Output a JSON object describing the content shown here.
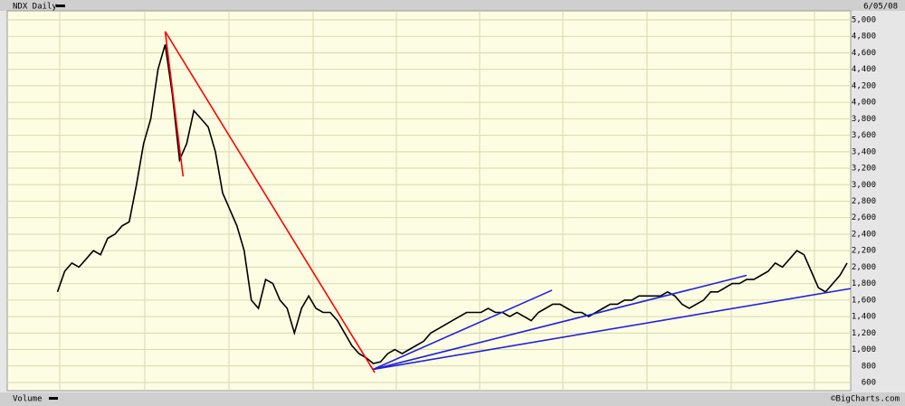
{
  "chart_data": {
    "type": "line",
    "title": "NDX Daily",
    "date_label": "6/05/08",
    "lower_panel_label": "Volume",
    "credit": "©BigCharts.com",
    "series": [
      {
        "name": "NDX",
        "color": "#000000",
        "values": [
          1700,
          1950,
          2050,
          2000,
          2100,
          2200,
          2150,
          2350,
          2400,
          2500,
          2550,
          3000,
          3500,
          3800,
          4400,
          4700,
          4100,
          3300,
          3500,
          3900,
          3800,
          3700,
          3400,
          2900,
          2700,
          2500,
          2200,
          1600,
          1500,
          1850,
          1800,
          1600,
          1500,
          1200,
          1500,
          1650,
          1500,
          1450,
          1450,
          1350,
          1200,
          1050,
          950,
          900,
          830,
          850,
          950,
          1000,
          950,
          1000,
          1050,
          1100,
          1200,
          1250,
          1300,
          1350,
          1400,
          1450,
          1450,
          1450,
          1500,
          1450,
          1450,
          1400,
          1450,
          1400,
          1350,
          1450,
          1500,
          1550,
          1550,
          1500,
          1450,
          1450,
          1400,
          1450,
          1500,
          1550,
          1550,
          1600,
          1600,
          1650,
          1650,
          1650,
          1650,
          1700,
          1650,
          1550,
          1500,
          1550,
          1600,
          1700,
          1700,
          1750,
          1800,
          1800,
          1850,
          1850,
          1900,
          1950,
          2050,
          2000,
          2100,
          2200,
          2150,
          1950,
          1750,
          1700,
          1800,
          1900,
          2050
        ]
      }
    ],
    "trendlines": [
      {
        "color": "#ff0000",
        "points": [
          [
            15,
            4860
          ],
          [
            44.2,
            720
          ]
        ]
      },
      {
        "color": "#ff0000",
        "points": [
          [
            15,
            4860
          ],
          [
            17.5,
            3100
          ]
        ]
      },
      {
        "color": "#2222dd",
        "points": [
          [
            44,
            760
          ],
          [
            68.9,
            1720
          ]
        ]
      },
      {
        "color": "#2222dd",
        "points": [
          [
            44,
            760
          ],
          [
            96,
            1900
          ]
        ]
      },
      {
        "color": "#2222dd",
        "points": [
          [
            44,
            760
          ],
          [
            110.5,
            1740
          ]
        ]
      }
    ],
    "xlim": [
      -7,
      110.5
    ],
    "ylim": [
      600,
      5000
    ],
    "yticks": [
      600,
      800,
      {
        "value": 1000,
        "label": "1,000"
      },
      {
        "value": 1200,
        "label": "1,200"
      },
      {
        "value": 1400,
        "label": "1,400"
      },
      {
        "value": 1600,
        "label": "1,600"
      },
      {
        "value": 1800,
        "label": "1,800"
      },
      {
        "value": 2000,
        "label": "2,000"
      },
      {
        "value": 2200,
        "label": "2,200"
      },
      {
        "value": 2400,
        "label": "2,400"
      },
      {
        "value": 2600,
        "label": "2,600"
      },
      {
        "value": 2800,
        "label": "2,800"
      },
      {
        "value": 3000,
        "label": "3,000"
      },
      {
        "value": 3200,
        "label": "3,200"
      },
      {
        "value": 3400,
        "label": "3,400"
      },
      {
        "value": 3600,
        "label": "3,600"
      },
      {
        "value": 3800,
        "label": "3,800"
      },
      {
        "value": 4000,
        "label": "4,000"
      },
      {
        "value": 4200,
        "label": "4,200"
      },
      {
        "value": 4400,
        "label": "4,400"
      },
      {
        "value": 4600,
        "label": "4,600"
      },
      {
        "value": 4800,
        "label": "4,800"
      },
      {
        "value": 5000,
        "label": "5,000"
      }
    ],
    "grid": true,
    "background": "#fdfde3"
  }
}
